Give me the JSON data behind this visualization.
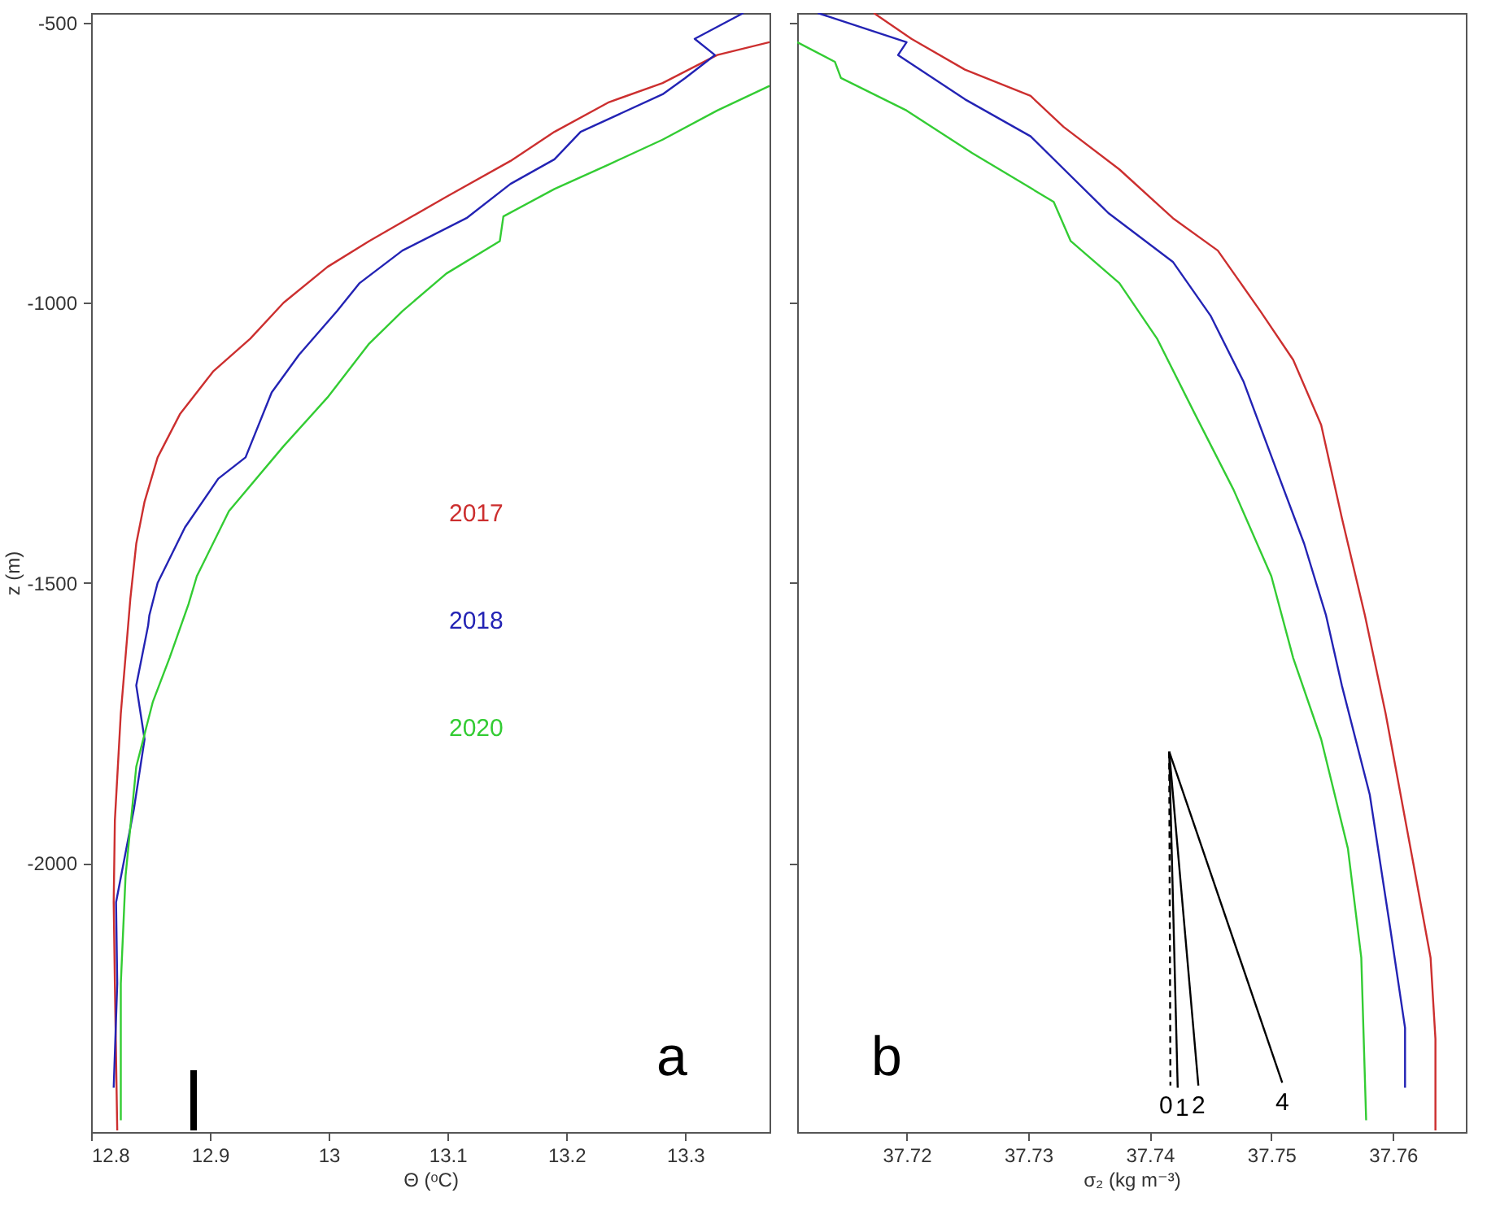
{
  "chart_data": [
    {
      "type": "line",
      "xlabel": "Θ (ᵒC)",
      "ylabel": "z (m)",
      "xlim": [
        12.8,
        13.371
      ],
      "ylim": [
        -2480,
        -483
      ],
      "xticks": [
        12.8,
        12.9,
        13,
        13.1,
        13.2,
        13.3
      ],
      "yticks": [
        -500,
        -1000,
        -1500,
        -2000
      ],
      "legend": "center",
      "annotations": [
        "a"
      ],
      "series": [
        {
          "name": "2017",
          "color": "#cc2f2f",
          "x": [
            13.371,
            13.327,
            13.281,
            13.236,
            13.19,
            13.153,
            13.099,
            13.034,
            12.999,
            12.962,
            12.934,
            12.903,
            12.875,
            12.856,
            12.845,
            12.838,
            12.833,
            12.825,
            12.82,
            12.819,
            12.82,
            12.822
          ],
          "values": [
            -535,
            -558,
            -608,
            -642,
            -695,
            -747,
            -811,
            -890,
            -936,
            -1000,
            -1064,
            -1122,
            -1198,
            -1276,
            -1355,
            -1430,
            -1529,
            -1733,
            -1924,
            -2070,
            -2215,
            -2477
          ]
        },
        {
          "name": "2018",
          "color": "#2323b4",
          "x": [
            13.349,
            13.308,
            13.325,
            13.3,
            13.281,
            13.212,
            13.19,
            13.153,
            13.116,
            13.062,
            13.026,
            13.007,
            12.975,
            12.952,
            12.93,
            12.907,
            12.879,
            12.856,
            12.849,
            12.848,
            12.838,
            12.845,
            12.836,
            12.821,
            12.822,
            12.819
          ],
          "values": [
            -483,
            -529,
            -558,
            -599,
            -628,
            -695,
            -744,
            -788,
            -849,
            -907,
            -965,
            -1015,
            -1093,
            -1160,
            -1276,
            -1314,
            -1401,
            -1500,
            -1558,
            -1576,
            -1683,
            -1779,
            -1904,
            -2070,
            -2215,
            -2401
          ]
        },
        {
          "name": "2020",
          "color": "#33cc33",
          "x": [
            13.371,
            13.327,
            13.281,
            13.236,
            13.19,
            13.147,
            13.144,
            13.099,
            13.062,
            13.034,
            12.999,
            12.962,
            12.916,
            12.889,
            12.882,
            12.866,
            12.852,
            12.838,
            12.829,
            12.825,
            12.825
          ],
          "values": [
            -613,
            -657,
            -709,
            -753,
            -797,
            -846,
            -890,
            -948,
            -1015,
            -1073,
            -1169,
            -1256,
            -1372,
            -1488,
            -1538,
            -1634,
            -1712,
            -1828,
            -2023,
            -2215,
            -2459
          ]
        }
      ]
    },
    {
      "type": "line",
      "xlabel": "σ₂ (kg m⁻³)",
      "xlim": [
        37.711,
        37.766
      ],
      "ylim": [
        -2480,
        -483
      ],
      "xticks": [
        37.72,
        37.73,
        37.74,
        37.75,
        37.76
      ],
      "yticks": [
        -500,
        -1000,
        -1500,
        -2000
      ],
      "tick_labels": "x",
      "annotations": [
        "b"
      ],
      "series": [
        {
          "color": "#cc2f2f",
          "x": [
            37.7173,
            37.7204,
            37.7248,
            37.7302,
            37.7329,
            37.7375,
            37.7419,
            37.7456,
            37.7491,
            37.7518,
            37.7541,
            37.7558,
            37.7577,
            37.7594,
            37.7617,
            37.7631,
            37.7635,
            37.7635
          ],
          "values": [
            -483,
            -529,
            -584,
            -631,
            -686,
            -762,
            -849,
            -907,
            -1015,
            -1102,
            -1218,
            -1384,
            -1558,
            -1733,
            -2003,
            -2169,
            -2314,
            -2477
          ]
        },
        {
          "color": "#2323b4",
          "x": [
            37.7127,
            37.72,
            37.7193,
            37.7248,
            37.7302,
            37.7366,
            37.7419,
            37.745,
            37.7477,
            37.7504,
            37.7527,
            37.7545,
            37.7558,
            37.7581,
            37.7598,
            37.761,
            37.761
          ],
          "values": [
            -483,
            -535,
            -558,
            -637,
            -703,
            -840,
            -927,
            -1023,
            -1140,
            -1297,
            -1430,
            -1558,
            -1683,
            -1878,
            -2119,
            -2294,
            -2401
          ]
        },
        {
          "color": "#33cc33",
          "x": [
            37.711,
            37.7141,
            37.7146,
            37.72,
            37.7254,
            37.7321,
            37.7335,
            37.7375,
            37.7406,
            37.7437,
            37.7469,
            37.75,
            37.7518,
            37.7541,
            37.7563,
            37.7574,
            37.7578
          ],
          "values": [
            -535,
            -570,
            -599,
            -657,
            -733,
            -820,
            -890,
            -965,
            -1064,
            -1198,
            -1334,
            -1488,
            -1634,
            -1779,
            -1974,
            -2169,
            -2459
          ]
        },
        {
          "name": "0",
          "color": "#000000",
          "line_style": "dashed",
          "x": [
            37.7416,
            37.7417
          ],
          "values": [
            -1801,
            -2397
          ]
        },
        {
          "name": "1",
          "color": "#000000",
          "x": [
            37.7416,
            37.7423
          ],
          "values": [
            -1801,
            -2401
          ]
        },
        {
          "name": "2",
          "color": "#000000",
          "x": [
            37.7416,
            37.744
          ],
          "values": [
            -1801,
            -2397
          ]
        },
        {
          "name": "4",
          "color": "#000000",
          "x": [
            37.7416,
            37.7509
          ],
          "values": [
            -1801,
            -2392
          ]
        }
      ]
    }
  ]
}
